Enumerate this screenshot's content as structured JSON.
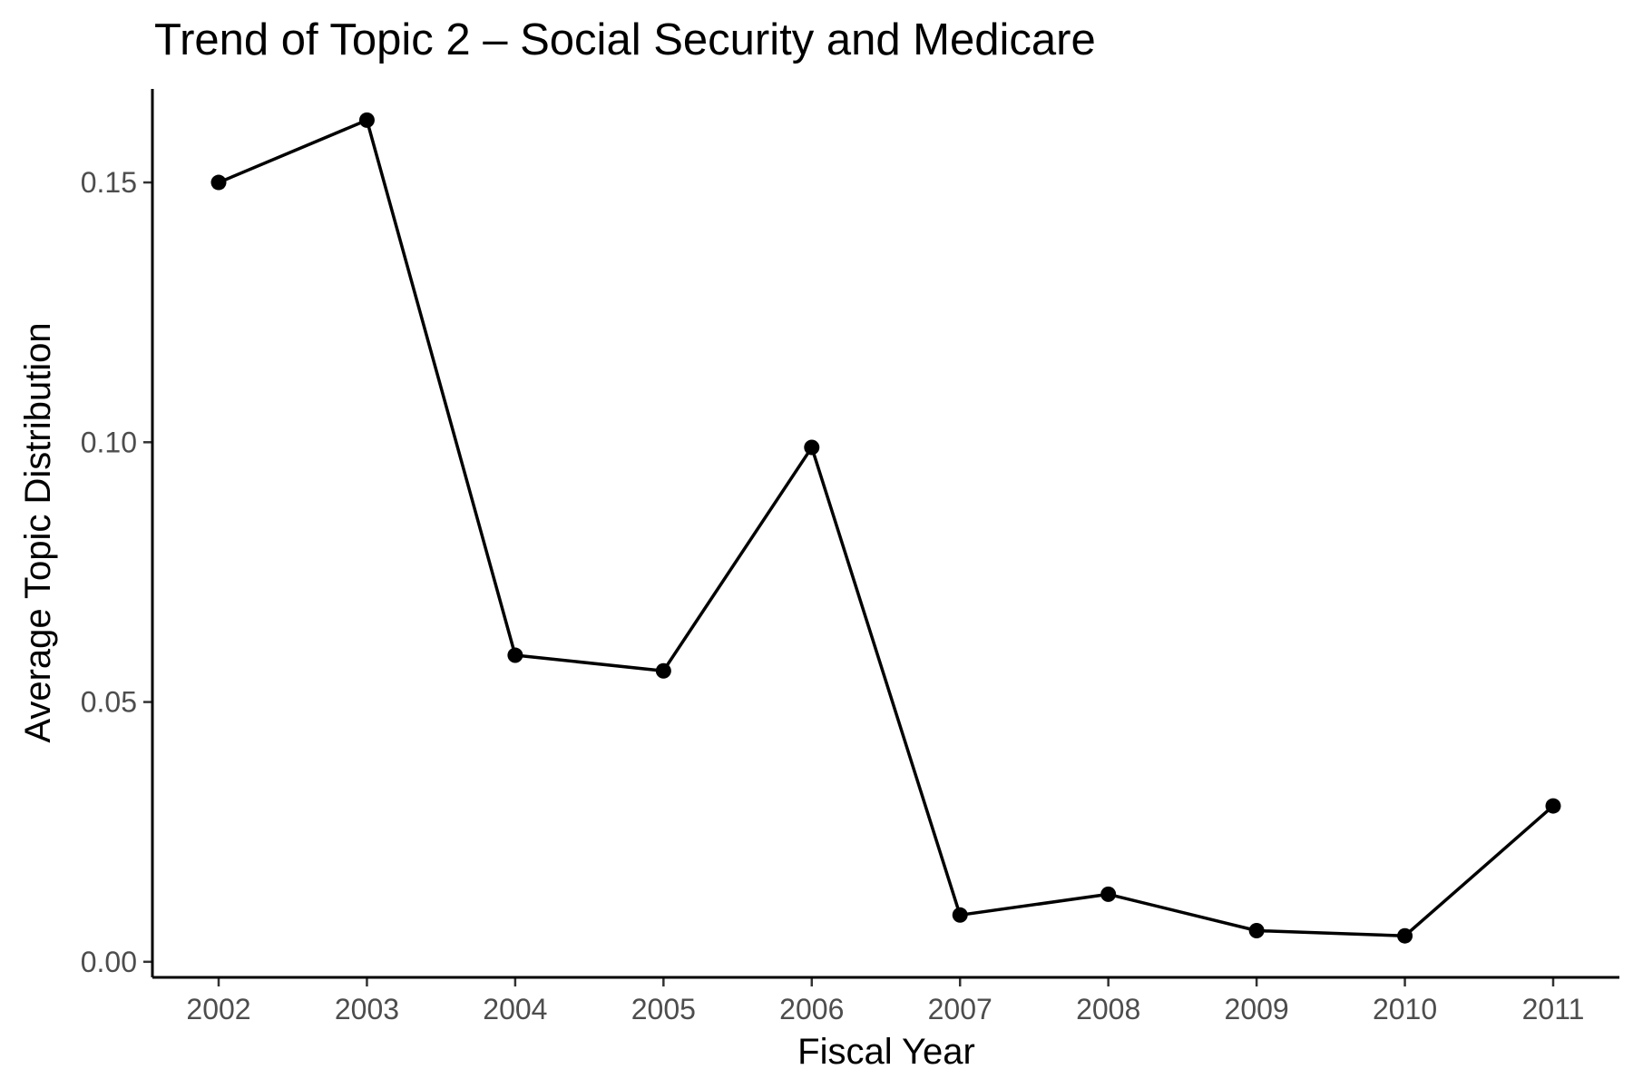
{
  "chart_data": {
    "type": "line",
    "title": "Trend of Topic 2 – Social Security and Medicare",
    "xlabel": "Fiscal Year",
    "ylabel": "Average Topic Distribution",
    "categories": [
      "2002",
      "2003",
      "2004",
      "2005",
      "2006",
      "2007",
      "2008",
      "2009",
      "2010",
      "2011"
    ],
    "values": [
      0.15,
      0.162,
      0.059,
      0.056,
      0.099,
      0.009,
      0.013,
      0.006,
      0.005,
      0.03
    ],
    "ylim": [
      -0.003,
      0.168
    ],
    "yticks": [
      0.0,
      0.05,
      0.1,
      0.15
    ],
    "ytick_labels": [
      "0.00",
      "0.05",
      "0.10",
      "0.15"
    ],
    "grid": false,
    "legend": "none",
    "colors": {
      "line": "#000000",
      "point": "#000000",
      "tick_label": "#4d4d4d"
    }
  }
}
